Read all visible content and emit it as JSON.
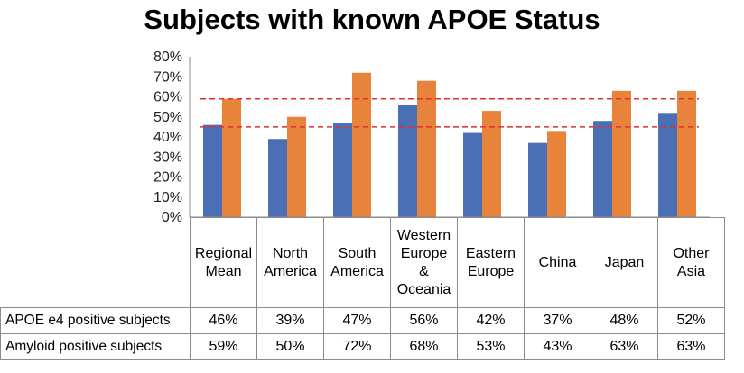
{
  "chart_data": {
    "type": "bar",
    "title": "Subjects with known APOE Status",
    "categories": [
      "Regional\nMean",
      "North\nAmerica",
      "South\nAmerica",
      "Western\nEurope\n&\nOceania",
      "Eastern\nEurope",
      "China",
      "Japan",
      "Other\nAsia"
    ],
    "series": [
      {
        "name": "APOE e4 positive subjects",
        "color": "#4a6fb5",
        "values": [
          46,
          39,
          47,
          56,
          42,
          37,
          48,
          52
        ],
        "labels": [
          "46%",
          "39%",
          "47%",
          "56%",
          "42%",
          "37%",
          "48%",
          "52%"
        ]
      },
      {
        "name": "Amyloid positive subjects",
        "color": "#e8833c",
        "values": [
          59,
          50,
          72,
          68,
          53,
          43,
          63,
          63
        ],
        "labels": [
          "59%",
          "50%",
          "72%",
          "68%",
          "53%",
          "43%",
          "63%",
          "63%"
        ]
      }
    ],
    "reference_lines": [
      {
        "value": 59,
        "color": "#e03030",
        "style": "dashed"
      },
      {
        "value": 45,
        "color": "#e03030",
        "style": "dashed"
      }
    ],
    "yticks": [
      "0%",
      "10%",
      "20%",
      "30%",
      "40%",
      "50%",
      "60%",
      "70%",
      "80%"
    ],
    "ylim": [
      0,
      80
    ],
    "grid": false,
    "legend": "data table"
  }
}
